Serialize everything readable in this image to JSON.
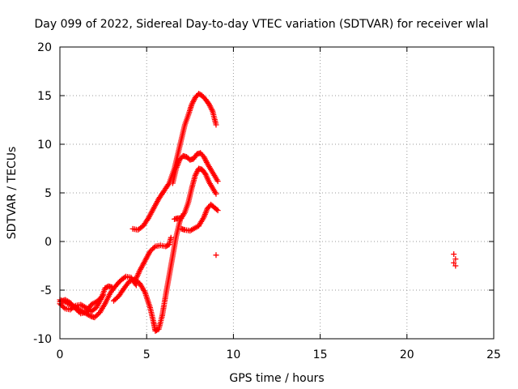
{
  "chart_data": {
    "type": "scatter",
    "title": "Day 099 of 2022, Sidereal Day-to-day VTEC variation (SDTVAR) for receiver wlal",
    "xlabel": "GPS time / hours",
    "ylabel": "SDTVAR / TECUs",
    "xlim": [
      0,
      25
    ],
    "ylim": [
      -10,
      20
    ],
    "xticks": [
      "0",
      "5",
      "10",
      "15",
      "20",
      "25"
    ],
    "yticks": [
      "-10",
      "-5",
      "0",
      "5",
      "10",
      "15",
      "20"
    ],
    "grid": true,
    "marker": "+",
    "color": "#ff0000",
    "series": [
      {
        "points": [
          [
            4.2,
            1.3
          ],
          [
            4.5,
            1.2
          ],
          [
            4.8,
            1.6
          ],
          [
            5.1,
            2.4
          ],
          [
            5.4,
            3.4
          ],
          [
            5.7,
            4.4
          ],
          [
            6.0,
            5.2
          ],
          [
            6.3,
            6.0
          ],
          [
            6.6,
            7.5
          ],
          [
            6.8,
            9.0
          ],
          [
            7.0,
            10.5
          ],
          [
            7.2,
            12.0
          ],
          [
            7.4,
            13.0
          ],
          [
            7.6,
            14.1
          ],
          [
            7.8,
            14.8
          ],
          [
            8.0,
            15.2
          ],
          [
            8.2,
            15.0
          ],
          [
            8.4,
            14.6
          ],
          [
            8.6,
            14.1
          ],
          [
            8.8,
            13.4
          ],
          [
            9.0,
            12.0
          ]
        ]
      },
      {
        "points": [
          [
            6.5,
            6.0
          ],
          [
            6.7,
            7.5
          ],
          [
            6.9,
            8.4
          ],
          [
            7.1,
            8.8
          ],
          [
            7.3,
            8.7
          ],
          [
            7.5,
            8.4
          ],
          [
            7.7,
            8.5
          ],
          [
            7.9,
            9.0
          ],
          [
            8.1,
            9.1
          ],
          [
            8.3,
            8.7
          ],
          [
            8.5,
            8.0
          ],
          [
            8.7,
            7.4
          ],
          [
            8.9,
            6.8
          ],
          [
            9.1,
            6.2
          ]
        ]
      },
      {
        "points": [
          [
            6.6,
            2.3
          ],
          [
            6.8,
            2.4
          ],
          [
            7.0,
            2.4
          ],
          [
            7.2,
            3.0
          ],
          [
            7.4,
            4.0
          ],
          [
            7.6,
            5.5
          ],
          [
            7.8,
            6.8
          ],
          [
            8.0,
            7.5
          ],
          [
            8.2,
            7.4
          ],
          [
            8.4,
            6.9
          ],
          [
            8.6,
            6.1
          ],
          [
            8.8,
            5.5
          ],
          [
            9.0,
            4.9
          ]
        ]
      },
      {
        "points": [
          [
            7.0,
            1.3
          ],
          [
            7.2,
            1.2
          ],
          [
            7.5,
            1.1
          ],
          [
            8.0,
            1.6
          ],
          [
            8.3,
            2.5
          ],
          [
            8.5,
            3.4
          ],
          [
            8.7,
            3.8
          ],
          [
            8.9,
            3.5
          ],
          [
            9.1,
            3.2
          ]
        ]
      },
      {
        "points": [
          [
            0.0,
            -6.4
          ],
          [
            0.3,
            -6.9
          ],
          [
            0.6,
            -7.0
          ],
          [
            0.9,
            -6.6
          ],
          [
            1.2,
            -6.5
          ],
          [
            1.5,
            -6.8
          ],
          [
            1.8,
            -7.2
          ],
          [
            2.1,
            -6.8
          ],
          [
            2.4,
            -5.8
          ],
          [
            2.6,
            -4.8
          ],
          [
            2.8,
            -4.6
          ],
          [
            3.0,
            -4.7
          ]
        ]
      },
      {
        "points": [
          [
            0.0,
            -6.0
          ],
          [
            0.3,
            -6.2
          ],
          [
            0.6,
            -6.5
          ],
          [
            0.9,
            -6.8
          ],
          [
            1.2,
            -7.1
          ],
          [
            1.5,
            -7.4
          ],
          [
            1.8,
            -7.7
          ],
          [
            2.0,
            -7.8
          ],
          [
            2.3,
            -7.3
          ],
          [
            2.6,
            -6.4
          ],
          [
            2.9,
            -5.3
          ],
          [
            3.2,
            -4.6
          ],
          [
            3.5,
            -4.0
          ],
          [
            3.8,
            -3.6
          ],
          [
            4.1,
            -3.7
          ],
          [
            4.4,
            -4.5
          ]
        ]
      },
      {
        "points": [
          [
            0.0,
            -6.2
          ],
          [
            0.3,
            -6.0
          ],
          [
            0.6,
            -6.3
          ],
          [
            0.9,
            -6.9
          ],
          [
            1.2,
            -7.4
          ],
          [
            1.5,
            -7.3
          ],
          [
            1.8,
            -6.5
          ],
          [
            2.2,
            -6.1
          ],
          [
            2.5,
            -5.5
          ]
        ]
      },
      {
        "points": [
          [
            3.1,
            -6.1
          ],
          [
            3.4,
            -5.6
          ],
          [
            3.7,
            -4.8
          ],
          [
            4.0,
            -4.1
          ],
          [
            4.3,
            -3.9
          ],
          [
            4.6,
            -4.3
          ],
          [
            4.9,
            -5.2
          ],
          [
            5.2,
            -6.8
          ],
          [
            5.4,
            -8.3
          ],
          [
            5.5,
            -9.2
          ],
          [
            5.7,
            -9.0
          ],
          [
            5.9,
            -7.6
          ],
          [
            6.1,
            -5.5
          ],
          [
            6.3,
            -3.5
          ],
          [
            6.5,
            -1.5
          ],
          [
            6.7,
            0.5
          ],
          [
            6.9,
            2.0
          ],
          [
            7.0,
            2.6
          ]
        ]
      },
      {
        "points": [
          [
            4.3,
            -4.2
          ],
          [
            4.6,
            -3.0
          ],
          [
            4.9,
            -2.0
          ],
          [
            5.2,
            -1.0
          ],
          [
            5.5,
            -0.5
          ],
          [
            5.8,
            -0.4
          ],
          [
            6.1,
            -0.5
          ],
          [
            6.3,
            -0.3
          ],
          [
            6.4,
            0.4
          ]
        ]
      },
      {
        "points": [
          [
            9.0,
            -1.4
          ],
          [
            22.7,
            -1.3
          ],
          [
            22.8,
            -1.8
          ],
          [
            22.7,
            -2.2
          ],
          [
            22.8,
            -2.5
          ]
        ]
      }
    ]
  }
}
